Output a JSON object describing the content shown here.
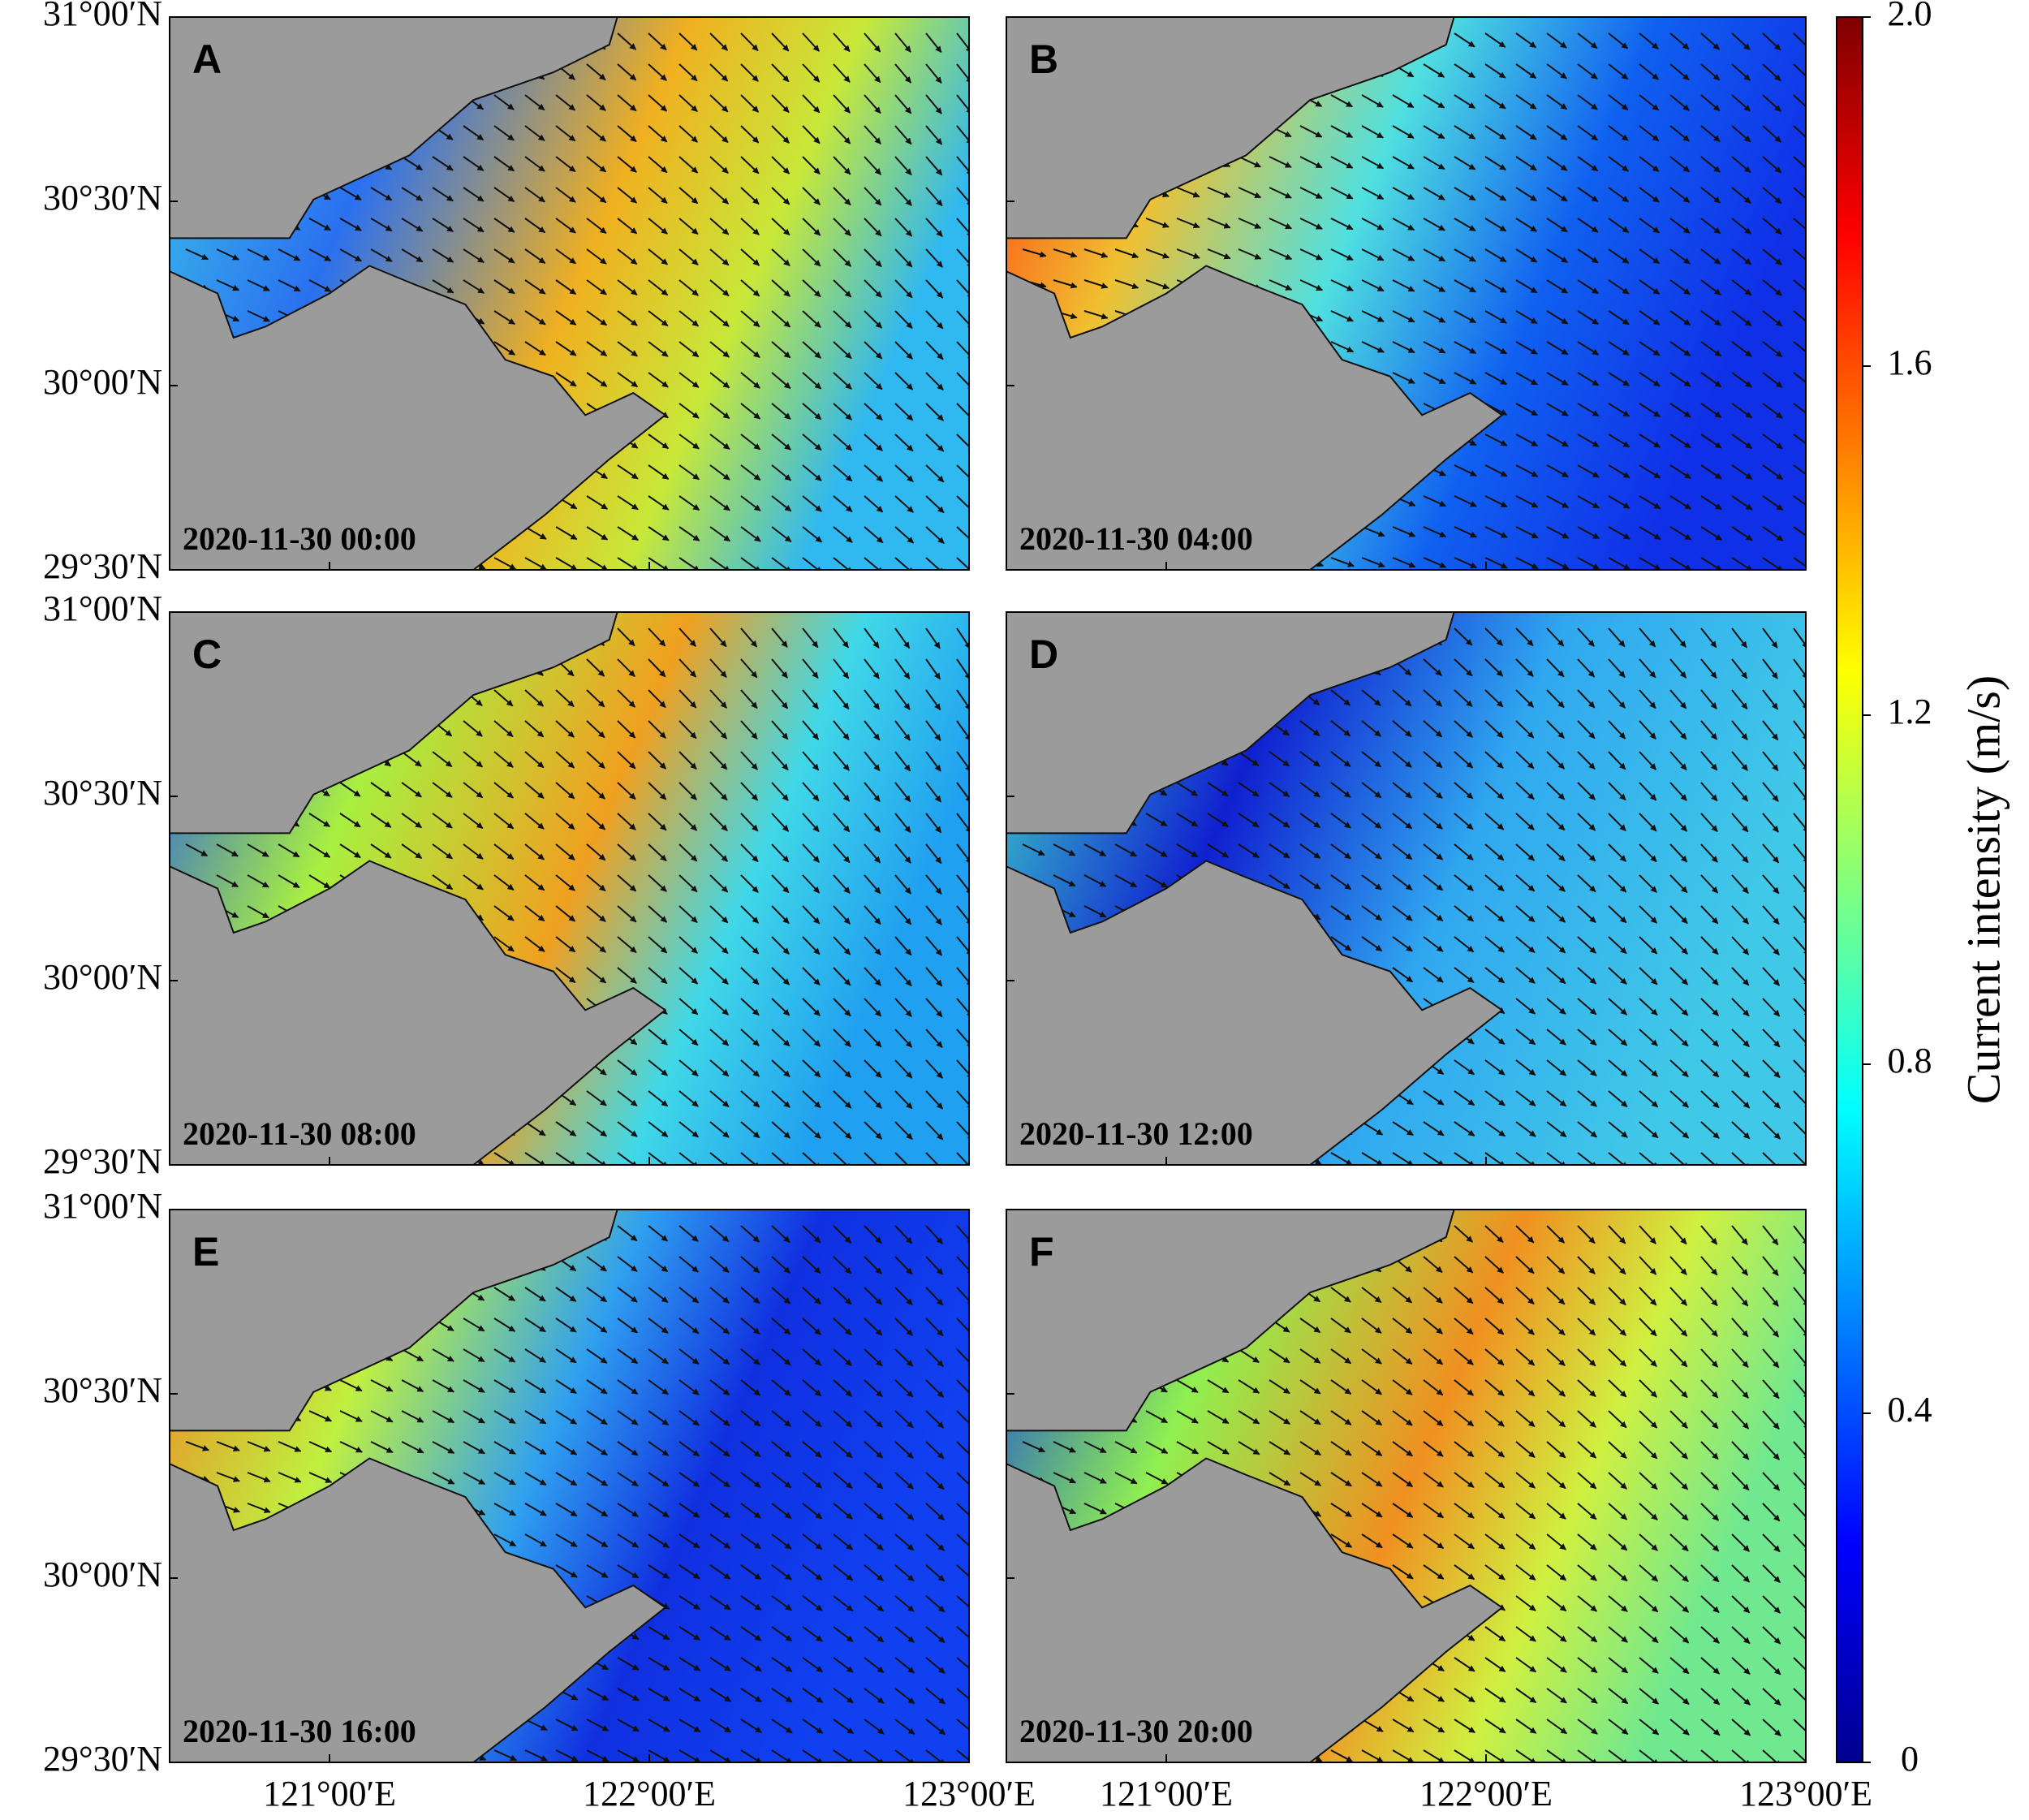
{
  "panels": [
    {
      "label": "A",
      "timestamp": "2020-11-30 00:00"
    },
    {
      "label": "B",
      "timestamp": "2020-11-30 04:00"
    },
    {
      "label": "C",
      "timestamp": "2020-11-30 08:00"
    },
    {
      "label": "D",
      "timestamp": "2020-11-30 12:00"
    },
    {
      "label": "E",
      "timestamp": "2020-11-30 16:00"
    },
    {
      "label": "F",
      "timestamp": "2020-11-30 20:00"
    }
  ],
  "axes": {
    "lat_range": [
      29.5,
      31
    ],
    "lat_ticks": [
      {
        "value": 31,
        "label": "31°00′N"
      },
      {
        "value": 30.5,
        "label": "30°30′N"
      },
      {
        "value": 30,
        "label": "30°00′N"
      },
      {
        "value": 29.5,
        "label": "29°30′N"
      }
    ],
    "lon_range": [
      120.5,
      123
    ],
    "lon_ticks": [
      {
        "value": 121,
        "label": "121°00′E"
      },
      {
        "value": 122,
        "label": "122°00′E"
      },
      {
        "value": 123,
        "label": "123°00′E"
      }
    ]
  },
  "colorbar": {
    "title": "Current intensity (m/s)",
    "range": [
      0,
      2
    ],
    "ticks": [
      0,
      0.4,
      0.8,
      1.2,
      1.6,
      {
        "value": 2,
        "label": "2.0"
      }
    ]
  }
}
